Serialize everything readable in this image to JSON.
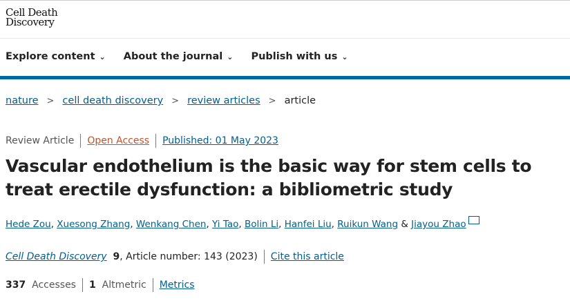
{
  "logo": {
    "line1": "Cell Death",
    "line2": "Discovery"
  },
  "nav": [
    {
      "label": "Explore content"
    },
    {
      "label": "About the journal"
    },
    {
      "label": "Publish with us"
    }
  ],
  "breadcrumb": [
    {
      "label": "nature"
    },
    {
      "label": "cell death discovery"
    },
    {
      "label": "review articles"
    },
    {
      "label": "article"
    }
  ],
  "meta": {
    "type": "Review Article",
    "access": "Open Access",
    "published": "Published: 01 May 2023"
  },
  "title": "Vascular endothelium is the basic way for stem cells to treat erectile dysfunction: a bibliometric study",
  "authors": [
    "Hede Zou",
    "Xuesong Zhang",
    "Wenkang Chen",
    "Yi Tao",
    "Bolin Li",
    "Hanfei Liu",
    "Ruikun Wang",
    "Jiayou Zhao"
  ],
  "citation": {
    "journal": "Cell Death Discovery",
    "volume": "9",
    "rest": ", Article number: 143 (2023)",
    "cite_link": "Cite this article"
  },
  "stats": {
    "accesses": "337",
    "accesses_label": "Accesses",
    "altmetric": "1",
    "altmetric_label": "Altmetric",
    "metrics_link": "Metrics"
  },
  "colors": {
    "link": "#025e8d",
    "brand_bar": "#0067a5",
    "open_access": "#c0532d"
  }
}
